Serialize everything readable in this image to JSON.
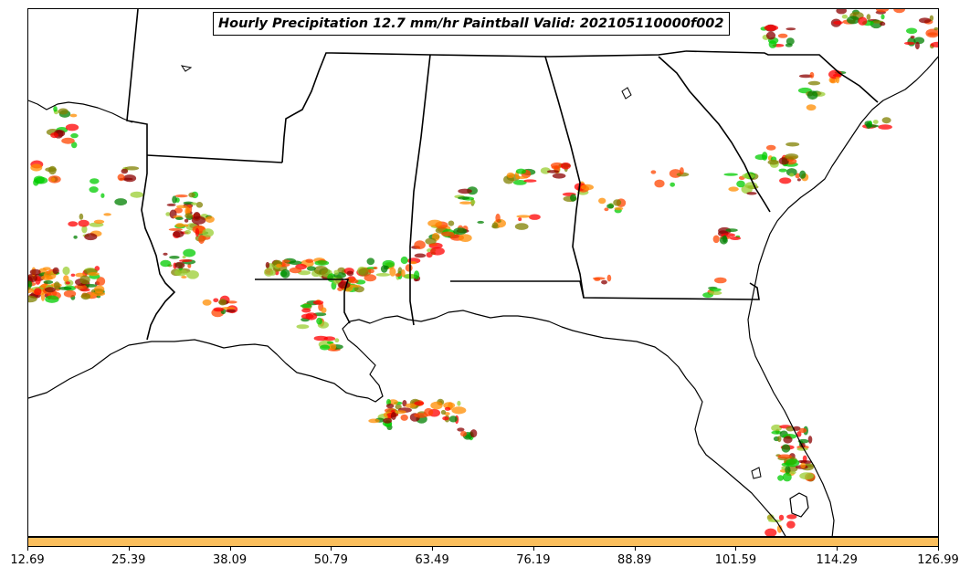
{
  "title": "Hourly Precipitation 12.7 mm/hr Paintball Valid: 202105110000f002",
  "colorbar": {
    "color": "#fbbf5d",
    "tick_labels": [
      "12.69",
      "25.39",
      "38.09",
      "50.79",
      "63.49",
      "76.19",
      "88.89",
      "101.59",
      "114.29",
      "126.99"
    ]
  },
  "colors": {
    "member_colors": [
      "#ff0000",
      "#ff8c00",
      "#008000",
      "#00cc00",
      "#8b0000",
      "#9acd32",
      "#808000",
      "#ff4500"
    ]
  }
}
